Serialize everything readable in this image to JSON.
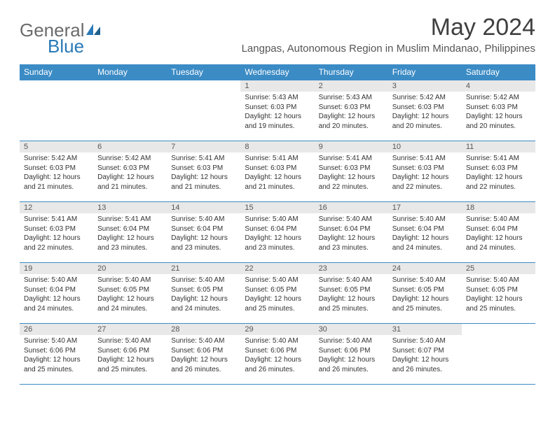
{
  "logo": {
    "general": "General",
    "blue": "Blue"
  },
  "title": "May 2024",
  "location": "Langpas, Autonomous Region in Muslim Mindanao, Philippines",
  "colors": {
    "header_bg": "#3b8bc5",
    "header_text": "#ffffff",
    "daynum_bg": "#e8e8e8",
    "rule": "#3b8bc5",
    "logo_gray": "#6b6b6b",
    "logo_blue": "#2a7ab8",
    "title_color": "#404040",
    "location_color": "#555555",
    "body_text": "#333333",
    "background": "#ffffff"
  },
  "dayheaders": [
    "Sunday",
    "Monday",
    "Tuesday",
    "Wednesday",
    "Thursday",
    "Friday",
    "Saturday"
  ],
  "weeks": [
    [
      {
        "empty": true
      },
      {
        "empty": true
      },
      {
        "empty": true
      },
      {
        "n": "1",
        "sr": "5:43 AM",
        "ss": "6:03 PM",
        "dl": "12 hours and 19 minutes."
      },
      {
        "n": "2",
        "sr": "5:43 AM",
        "ss": "6:03 PM",
        "dl": "12 hours and 20 minutes."
      },
      {
        "n": "3",
        "sr": "5:42 AM",
        "ss": "6:03 PM",
        "dl": "12 hours and 20 minutes."
      },
      {
        "n": "4",
        "sr": "5:42 AM",
        "ss": "6:03 PM",
        "dl": "12 hours and 20 minutes."
      }
    ],
    [
      {
        "n": "5",
        "sr": "5:42 AM",
        "ss": "6:03 PM",
        "dl": "12 hours and 21 minutes."
      },
      {
        "n": "6",
        "sr": "5:42 AM",
        "ss": "6:03 PM",
        "dl": "12 hours and 21 minutes."
      },
      {
        "n": "7",
        "sr": "5:41 AM",
        "ss": "6:03 PM",
        "dl": "12 hours and 21 minutes."
      },
      {
        "n": "8",
        "sr": "5:41 AM",
        "ss": "6:03 PM",
        "dl": "12 hours and 21 minutes."
      },
      {
        "n": "9",
        "sr": "5:41 AM",
        "ss": "6:03 PM",
        "dl": "12 hours and 22 minutes."
      },
      {
        "n": "10",
        "sr": "5:41 AM",
        "ss": "6:03 PM",
        "dl": "12 hours and 22 minutes."
      },
      {
        "n": "11",
        "sr": "5:41 AM",
        "ss": "6:03 PM",
        "dl": "12 hours and 22 minutes."
      }
    ],
    [
      {
        "n": "12",
        "sr": "5:41 AM",
        "ss": "6:03 PM",
        "dl": "12 hours and 22 minutes."
      },
      {
        "n": "13",
        "sr": "5:41 AM",
        "ss": "6:04 PM",
        "dl": "12 hours and 23 minutes."
      },
      {
        "n": "14",
        "sr": "5:40 AM",
        "ss": "6:04 PM",
        "dl": "12 hours and 23 minutes."
      },
      {
        "n": "15",
        "sr": "5:40 AM",
        "ss": "6:04 PM",
        "dl": "12 hours and 23 minutes."
      },
      {
        "n": "16",
        "sr": "5:40 AM",
        "ss": "6:04 PM",
        "dl": "12 hours and 23 minutes."
      },
      {
        "n": "17",
        "sr": "5:40 AM",
        "ss": "6:04 PM",
        "dl": "12 hours and 24 minutes."
      },
      {
        "n": "18",
        "sr": "5:40 AM",
        "ss": "6:04 PM",
        "dl": "12 hours and 24 minutes."
      }
    ],
    [
      {
        "n": "19",
        "sr": "5:40 AM",
        "ss": "6:04 PM",
        "dl": "12 hours and 24 minutes."
      },
      {
        "n": "20",
        "sr": "5:40 AM",
        "ss": "6:05 PM",
        "dl": "12 hours and 24 minutes."
      },
      {
        "n": "21",
        "sr": "5:40 AM",
        "ss": "6:05 PM",
        "dl": "12 hours and 24 minutes."
      },
      {
        "n": "22",
        "sr": "5:40 AM",
        "ss": "6:05 PM",
        "dl": "12 hours and 25 minutes."
      },
      {
        "n": "23",
        "sr": "5:40 AM",
        "ss": "6:05 PM",
        "dl": "12 hours and 25 minutes."
      },
      {
        "n": "24",
        "sr": "5:40 AM",
        "ss": "6:05 PM",
        "dl": "12 hours and 25 minutes."
      },
      {
        "n": "25",
        "sr": "5:40 AM",
        "ss": "6:05 PM",
        "dl": "12 hours and 25 minutes."
      }
    ],
    [
      {
        "n": "26",
        "sr": "5:40 AM",
        "ss": "6:06 PM",
        "dl": "12 hours and 25 minutes."
      },
      {
        "n": "27",
        "sr": "5:40 AM",
        "ss": "6:06 PM",
        "dl": "12 hours and 25 minutes."
      },
      {
        "n": "28",
        "sr": "5:40 AM",
        "ss": "6:06 PM",
        "dl": "12 hours and 26 minutes."
      },
      {
        "n": "29",
        "sr": "5:40 AM",
        "ss": "6:06 PM",
        "dl": "12 hours and 26 minutes."
      },
      {
        "n": "30",
        "sr": "5:40 AM",
        "ss": "6:06 PM",
        "dl": "12 hours and 26 minutes."
      },
      {
        "n": "31",
        "sr": "5:40 AM",
        "ss": "6:07 PM",
        "dl": "12 hours and 26 minutes."
      },
      {
        "empty": true
      }
    ]
  ],
  "labels": {
    "sunrise": "Sunrise: ",
    "sunset": "Sunset: ",
    "daylight": "Daylight: "
  }
}
